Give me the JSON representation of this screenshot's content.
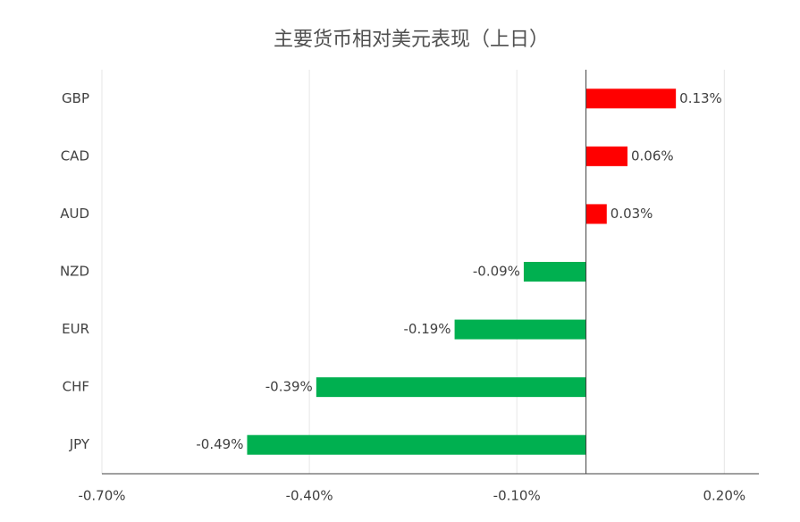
{
  "chart_data": {
    "type": "hbar",
    "title": "主要货币相对美元表现（上日）",
    "categories": [
      "GBP",
      "CAD",
      "AUD",
      "NZD",
      "EUR",
      "CHF",
      "JPY"
    ],
    "values": [
      0.13,
      0.06,
      0.03,
      -0.09,
      -0.19,
      -0.39,
      -0.49
    ],
    "value_labels": [
      "0.13%",
      "0.06%",
      "0.03%",
      "-0.09%",
      "-0.19%",
      "-0.39%",
      "-0.49%"
    ],
    "positive_color": "#ff0000",
    "negative_color": "#00b050",
    "xlim": [
      -0.7,
      0.25
    ],
    "xticks": [
      {
        "value": -0.7,
        "label": "-0.70%"
      },
      {
        "value": -0.4,
        "label": "-0.40%"
      },
      {
        "value": -0.1,
        "label": "-0.10%"
      },
      {
        "value": 0.2,
        "label": "0.20%"
      }
    ],
    "grid": true
  }
}
